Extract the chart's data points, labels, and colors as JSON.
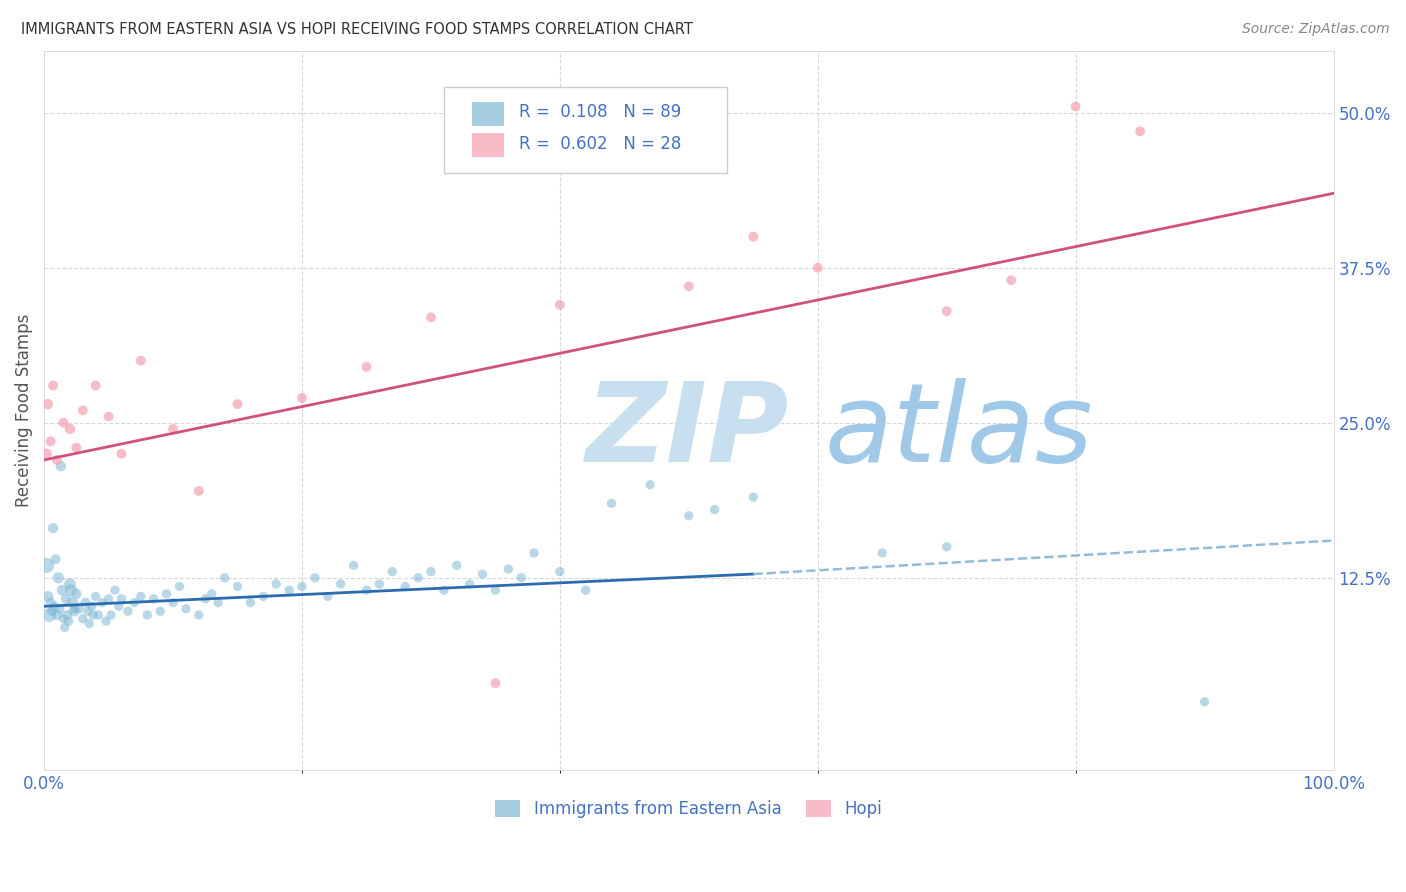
{
  "title": "IMMIGRANTS FROM EASTERN ASIA VS HOPI RECEIVING FOOD STAMPS CORRELATION CHART",
  "source": "Source: ZipAtlas.com",
  "ylabel": "Receiving Food Stamps",
  "legend_label1": "Immigrants from Eastern Asia",
  "legend_label2": "Hopi",
  "legend_r1": "R =  0.108",
  "legend_n1": "N = 89",
  "legend_r2": "R =  0.602",
  "legend_n2": "N = 28",
  "blue_color": "#7eb8d4",
  "pink_color": "#f4a0b0",
  "blue_line_color": "#2b6cb0",
  "pink_line_color": "#d05080",
  "dashed_line_color": "#90bcd8",
  "watermark_zip_color": "#c8dff0",
  "watermark_atlas_color": "#a0c8e8",
  "background_color": "#ffffff",
  "title_color": "#333333",
  "axis_label_color": "#555555",
  "tick_color": "#4472c4",
  "blue_scatter": {
    "x": [
      0.3,
      0.5,
      0.6,
      0.8,
      1.0,
      1.1,
      1.2,
      1.4,
      1.5,
      1.7,
      1.8,
      2.0,
      2.1,
      2.2,
      2.3,
      2.5,
      2.7,
      3.0,
      3.2,
      3.4,
      3.5,
      3.7,
      3.8,
      4.0,
      4.2,
      4.5,
      4.8,
      5.0,
      5.2,
      5.5,
      5.8,
      6.0,
      6.5,
      7.0,
      7.5,
      8.0,
      8.5,
      9.0,
      9.5,
      10.0,
      10.5,
      11.0,
      12.0,
      12.5,
      13.0,
      13.5,
      14.0,
      15.0,
      16.0,
      17.0,
      18.0,
      19.0,
      20.0,
      21.0,
      22.0,
      23.0,
      24.0,
      25.0,
      26.0,
      27.0,
      28.0,
      29.0,
      30.0,
      31.0,
      32.0,
      33.0,
      34.0,
      35.0,
      36.0,
      37.0,
      38.0,
      40.0,
      42.0,
      44.0,
      47.0,
      50.0,
      52.0,
      55.0,
      65.0,
      70.0,
      90.0,
      0.2,
      0.4,
      0.7,
      0.9,
      1.3,
      1.6,
      1.9,
      2.4
    ],
    "y": [
      11.0,
      10.5,
      9.8,
      10.2,
      9.5,
      12.5,
      10.0,
      11.5,
      9.2,
      10.8,
      9.5,
      12.0,
      11.5,
      10.5,
      9.8,
      11.2,
      10.0,
      9.2,
      10.5,
      9.8,
      8.8,
      10.2,
      9.5,
      11.0,
      9.5,
      10.5,
      9.0,
      10.8,
      9.5,
      11.5,
      10.2,
      10.8,
      9.8,
      10.5,
      11.0,
      9.5,
      10.8,
      9.8,
      11.2,
      10.5,
      11.8,
      10.0,
      9.5,
      10.8,
      11.2,
      10.5,
      12.5,
      11.8,
      10.5,
      11.0,
      12.0,
      11.5,
      11.8,
      12.5,
      11.0,
      12.0,
      13.5,
      11.5,
      12.0,
      13.0,
      11.8,
      12.5,
      13.0,
      11.5,
      13.5,
      12.0,
      12.8,
      11.5,
      13.2,
      12.5,
      14.5,
      13.0,
      11.5,
      18.5,
      20.0,
      17.5,
      18.0,
      19.0,
      14.5,
      15.0,
      2.5,
      13.5,
      9.5,
      16.5,
      14.0,
      21.5,
      8.5,
      9.0,
      10.0
    ],
    "sizes": [
      60,
      50,
      45,
      50,
      55,
      65,
      50,
      60,
      45,
      55,
      50,
      70,
      75,
      65,
      60,
      55,
      50,
      45,
      50,
      45,
      45,
      45,
      45,
      45,
      45,
      45,
      45,
      45,
      45,
      45,
      45,
      45,
      45,
      45,
      45,
      45,
      45,
      45,
      45,
      45,
      45,
      45,
      45,
      45,
      45,
      45,
      45,
      45,
      45,
      45,
      45,
      45,
      45,
      45,
      45,
      45,
      45,
      45,
      45,
      45,
      45,
      45,
      45,
      45,
      45,
      45,
      45,
      45,
      45,
      45,
      45,
      45,
      45,
      45,
      45,
      45,
      45,
      45,
      45,
      45,
      45,
      120,
      100,
      55,
      50,
      55,
      45,
      45,
      45
    ]
  },
  "pink_scatter": {
    "x": [
      0.2,
      0.3,
      0.5,
      0.7,
      1.0,
      1.5,
      2.0,
      2.5,
      3.0,
      4.0,
      5.0,
      6.0,
      7.5,
      10.0,
      12.0,
      15.0,
      20.0,
      25.0,
      30.0,
      35.0,
      40.0,
      50.0,
      55.0,
      60.0,
      70.0,
      75.0,
      80.0,
      85.0
    ],
    "y": [
      22.5,
      26.5,
      23.5,
      28.0,
      22.0,
      25.0,
      24.5,
      23.0,
      26.0,
      28.0,
      25.5,
      22.5,
      30.0,
      24.5,
      19.5,
      26.5,
      27.0,
      29.5,
      33.5,
      4.0,
      34.5,
      36.0,
      40.0,
      37.5,
      34.0,
      36.5,
      50.5,
      48.5
    ],
    "sizes": [
      55,
      55,
      50,
      50,
      50,
      50,
      55,
      50,
      50,
      50,
      50,
      50,
      50,
      50,
      50,
      50,
      50,
      50,
      50,
      50,
      50,
      50,
      50,
      50,
      50,
      50,
      50,
      50
    ]
  },
  "xlim": [
    0,
    100
  ],
  "ylim": [
    -3,
    55
  ],
  "blue_trend_x0": 0,
  "blue_trend_y0": 10.2,
  "blue_trend_x1": 55,
  "blue_trend_y1": 12.8,
  "pink_trend_x0": 0,
  "pink_trend_y0": 22.0,
  "pink_trend_x1": 100,
  "pink_trend_y1": 43.5,
  "dashed_x0": 55,
  "dashed_y0": 12.8,
  "dashed_x1": 100,
  "dashed_y1": 15.5
}
